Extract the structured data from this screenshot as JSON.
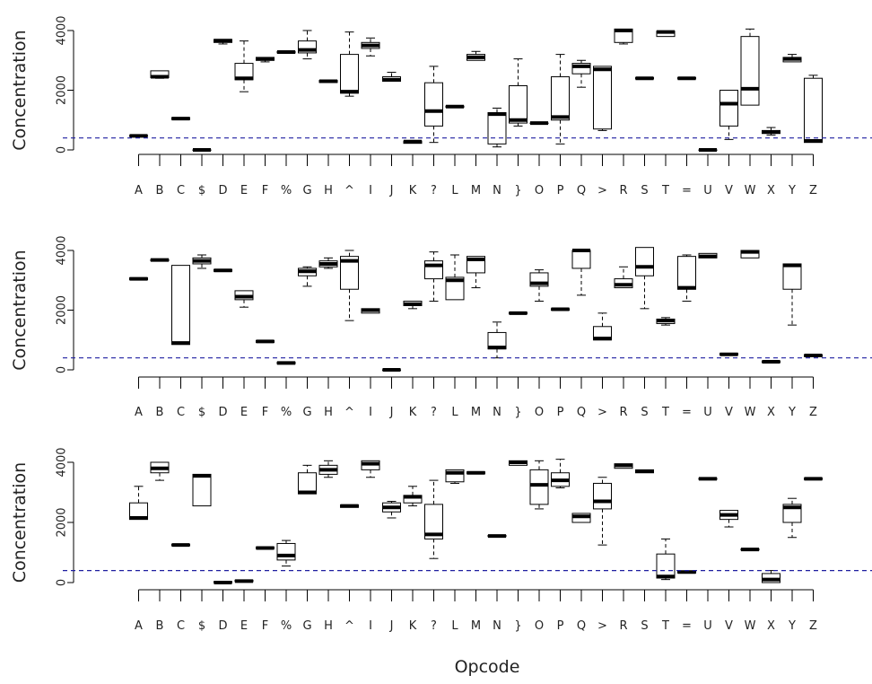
{
  "figure": {
    "xlabel": "Opcode",
    "ylabel": "Concentration",
    "threshold": 400,
    "threshold_color": "#1f1fa0"
  },
  "chart_data": [
    {
      "type": "boxplot",
      "categories": [
        "A",
        "B",
        "C",
        "$",
        "D",
        "E",
        "F",
        "%",
        "G",
        "H",
        "^",
        "I",
        "J",
        "K",
        "?",
        "L",
        "M",
        "N",
        "}",
        "O",
        "P",
        "Q",
        ">",
        "R",
        "S",
        "T",
        "=",
        "U",
        "V",
        "W",
        "X",
        "Y",
        "Z"
      ],
      "ylabel": "Concentration",
      "yticks": [
        0,
        2000,
        4000
      ],
      "ylim": [
        -250,
        4150
      ],
      "reference_line": 400,
      "boxes": [
        {
          "min": 460,
          "q1": 460,
          "median": 470,
          "q3": 480,
          "max": 480
        },
        {
          "min": 2400,
          "q1": 2420,
          "median": 2450,
          "q3": 2650,
          "max": 2650
        },
        {
          "min": 1020,
          "q1": 1020,
          "median": 1050,
          "q3": 1080,
          "max": 1080
        },
        {
          "min": 0,
          "q1": 0,
          "median": 0,
          "q3": 0,
          "max": 0
        },
        {
          "min": 3550,
          "q1": 3600,
          "median": 3660,
          "q3": 3700,
          "max": 3700
        },
        {
          "min": 1950,
          "q1": 2350,
          "median": 2400,
          "q3": 2900,
          "max": 3650
        },
        {
          "min": 2950,
          "q1": 3000,
          "median": 3050,
          "q3": 3100,
          "max": 3100
        },
        {
          "min": 3250,
          "q1": 3250,
          "median": 3280,
          "q3": 3300,
          "max": 3300
        },
        {
          "min": 3050,
          "q1": 3250,
          "median": 3350,
          "q3": 3650,
          "max": 4000
        },
        {
          "min": 2260,
          "q1": 2260,
          "median": 2300,
          "q3": 2330,
          "max": 2330
        },
        {
          "min": 1800,
          "q1": 1900,
          "median": 1950,
          "q3": 3200,
          "max": 3950
        },
        {
          "min": 3150,
          "q1": 3400,
          "median": 3500,
          "q3": 3600,
          "max": 3750
        },
        {
          "min": 2300,
          "q1": 2300,
          "median": 2350,
          "q3": 2450,
          "max": 2600
        },
        {
          "min": 220,
          "q1": 220,
          "median": 280,
          "q3": 300,
          "max": 300
        },
        {
          "min": 250,
          "q1": 800,
          "median": 1300,
          "q3": 2250,
          "max": 2800
        },
        {
          "min": 1430,
          "q1": 1430,
          "median": 1450,
          "q3": 1470,
          "max": 1470
        },
        {
          "min": 3000,
          "q1": 3000,
          "median": 3100,
          "q3": 3200,
          "max": 3300
        },
        {
          "min": 100,
          "q1": 200,
          "median": 1200,
          "q3": 1250,
          "max": 1400
        },
        {
          "min": 800,
          "q1": 900,
          "median": 1000,
          "q3": 2150,
          "max": 3050
        },
        {
          "min": 900,
          "q1": 900,
          "median": 900,
          "q3": 900,
          "max": 900
        },
        {
          "min": 200,
          "q1": 1000,
          "median": 1100,
          "q3": 2450,
          "max": 3200
        },
        {
          "min": 2100,
          "q1": 2550,
          "median": 2800,
          "q3": 2900,
          "max": 3000
        },
        {
          "min": 650,
          "q1": 700,
          "median": 2700,
          "q3": 2800,
          "max": 2800
        },
        {
          "min": 3550,
          "q1": 3600,
          "median": 4000,
          "q3": 4050,
          "max": 4050
        },
        {
          "min": 2380,
          "q1": 2380,
          "median": 2400,
          "q3": 2420,
          "max": 2420
        },
        {
          "min": 3800,
          "q1": 3800,
          "median": 3950,
          "q3": 3980,
          "max": 3980
        },
        {
          "min": 2380,
          "q1": 2380,
          "median": 2400,
          "q3": 2420,
          "max": 2420
        },
        {
          "min": 0,
          "q1": 0,
          "median": 0,
          "q3": 0,
          "max": 0
        },
        {
          "min": 350,
          "q1": 800,
          "median": 1550,
          "q3": 2000,
          "max": 2000
        },
        {
          "min": 1500,
          "q1": 1500,
          "median": 2050,
          "q3": 3800,
          "max": 4050
        },
        {
          "min": 500,
          "q1": 550,
          "median": 600,
          "q3": 650,
          "max": 750
        },
        {
          "min": 2950,
          "q1": 2950,
          "median": 3050,
          "q3": 3100,
          "max": 3200
        },
        {
          "min": 250,
          "q1": 250,
          "median": 300,
          "q3": 2400,
          "max": 2500
        }
      ]
    },
    {
      "type": "boxplot",
      "categories": [
        "A",
        "B",
        "C",
        "$",
        "D",
        "E",
        "F",
        "%",
        "G",
        "H",
        "^",
        "I",
        "J",
        "K",
        "?",
        "L",
        "M",
        "N",
        "}",
        "O",
        "P",
        "Q",
        ">",
        "R",
        "S",
        "T",
        "=",
        "U",
        "V",
        "W",
        "X",
        "Y",
        "Z"
      ],
      "ylabel": "Concentration",
      "yticks": [
        0,
        2000,
        4000
      ],
      "ylim": [
        -250,
        4150
      ],
      "reference_line": 400,
      "boxes": [
        {
          "min": 3020,
          "q1": 3020,
          "median": 3050,
          "q3": 3080,
          "max": 3080
        },
        {
          "min": 3650,
          "q1": 3650,
          "median": 3680,
          "q3": 3700,
          "max": 3700
        },
        {
          "min": 850,
          "q1": 850,
          "median": 900,
          "q3": 3500,
          "max": 3500
        },
        {
          "min": 3400,
          "q1": 3550,
          "median": 3650,
          "q3": 3750,
          "max": 3850
        },
        {
          "min": 3300,
          "q1": 3300,
          "median": 3330,
          "q3": 3360,
          "max": 3360
        },
        {
          "min": 2100,
          "q1": 2350,
          "median": 2450,
          "q3": 2650,
          "max": 2650
        },
        {
          "min": 920,
          "q1": 920,
          "median": 950,
          "q3": 980,
          "max": 980
        },
        {
          "min": 200,
          "q1": 200,
          "median": 230,
          "q3": 260,
          "max": 260
        },
        {
          "min": 2800,
          "q1": 3150,
          "median": 3300,
          "q3": 3400,
          "max": 3450
        },
        {
          "min": 3400,
          "q1": 3450,
          "median": 3550,
          "q3": 3650,
          "max": 3750
        },
        {
          "min": 1650,
          "q1": 2700,
          "median": 3650,
          "q3": 3800,
          "max": 4000
        },
        {
          "min": 1900,
          "q1": 1900,
          "median": 2000,
          "q3": 2050,
          "max": 2050
        },
        {
          "min": 0,
          "q1": 0,
          "median": 0,
          "q3": 0,
          "max": 0
        },
        {
          "min": 2050,
          "q1": 2150,
          "median": 2200,
          "q3": 2300,
          "max": 2300
        },
        {
          "min": 2300,
          "q1": 3050,
          "median": 3500,
          "q3": 3650,
          "max": 3950
        },
        {
          "min": 2350,
          "q1": 2350,
          "median": 3000,
          "q3": 3100,
          "max": 3850
        },
        {
          "min": 2750,
          "q1": 3250,
          "median": 3700,
          "q3": 3800,
          "max": 3800
        },
        {
          "min": 400,
          "q1": 700,
          "median": 750,
          "q3": 1250,
          "max": 1600
        },
        {
          "min": 1880,
          "q1": 1880,
          "median": 1900,
          "q3": 1920,
          "max": 1920
        },
        {
          "min": 2300,
          "q1": 2800,
          "median": 2900,
          "q3": 3250,
          "max": 3350
        },
        {
          "min": 2000,
          "q1": 2000,
          "median": 2030,
          "q3": 2050,
          "max": 2050
        },
        {
          "min": 2500,
          "q1": 3400,
          "median": 4000,
          "q3": 4000,
          "max": 4000
        },
        {
          "min": 1000,
          "q1": 1000,
          "median": 1050,
          "q3": 1450,
          "max": 1900
        },
        {
          "min": 2750,
          "q1": 2750,
          "median": 2850,
          "q3": 3050,
          "max": 3450
        },
        {
          "min": 2050,
          "q1": 3150,
          "median": 3450,
          "q3": 4100,
          "max": 4100
        },
        {
          "min": 1500,
          "q1": 1550,
          "median": 1650,
          "q3": 1700,
          "max": 1750
        },
        {
          "min": 2300,
          "q1": 2700,
          "median": 2750,
          "q3": 3800,
          "max": 3850
        },
        {
          "min": 3750,
          "q1": 3750,
          "median": 3800,
          "q3": 3900,
          "max": 3900
        },
        {
          "min": 500,
          "q1": 500,
          "median": 520,
          "q3": 550,
          "max": 550
        },
        {
          "min": 3750,
          "q1": 3750,
          "median": 3950,
          "q3": 4000,
          "max": 4000
        },
        {
          "min": 250,
          "q1": 250,
          "median": 270,
          "q3": 290,
          "max": 290
        },
        {
          "min": 1500,
          "q1": 2700,
          "median": 3500,
          "q3": 3550,
          "max": 3550
        },
        {
          "min": 450,
          "q1": 450,
          "median": 480,
          "q3": 500,
          "max": 500
        }
      ]
    },
    {
      "type": "boxplot",
      "categories": [
        "A",
        "B",
        "C",
        "$",
        "D",
        "E",
        "F",
        "%",
        "G",
        "H",
        "^",
        "I",
        "J",
        "K",
        "?",
        "L",
        "M",
        "N",
        "}",
        "O",
        "P",
        "Q",
        ">",
        "R",
        "S",
        "T",
        "=",
        "U",
        "V",
        "W",
        "X",
        "Y",
        "Z"
      ],
      "ylabel": "Concentration",
      "yticks": [
        0,
        2000,
        4000
      ],
      "ylim": [
        -250,
        4150
      ],
      "reference_line": 400,
      "boxes": [
        {
          "min": 2100,
          "q1": 2100,
          "median": 2150,
          "q3": 2650,
          "max": 3200
        },
        {
          "min": 3400,
          "q1": 3650,
          "median": 3800,
          "q3": 4000,
          "max": 4000
        },
        {
          "min": 1230,
          "q1": 1230,
          "median": 1250,
          "q3": 1270,
          "max": 1270
        },
        {
          "min": 2550,
          "q1": 2550,
          "median": 3550,
          "q3": 3600,
          "max": 3600
        },
        {
          "min": 0,
          "q1": 0,
          "median": 0,
          "q3": 30,
          "max": 30
        },
        {
          "min": 30,
          "q1": 30,
          "median": 50,
          "q3": 80,
          "max": 80
        },
        {
          "min": 1130,
          "q1": 1130,
          "median": 1150,
          "q3": 1180,
          "max": 1180
        },
        {
          "min": 550,
          "q1": 750,
          "median": 900,
          "q3": 1300,
          "max": 1400
        },
        {
          "min": 2950,
          "q1": 2950,
          "median": 3000,
          "q3": 3650,
          "max": 3900
        },
        {
          "min": 3500,
          "q1": 3600,
          "median": 3750,
          "q3": 3900,
          "max": 4050
        },
        {
          "min": 2500,
          "q1": 2500,
          "median": 2550,
          "q3": 2580,
          "max": 2580
        },
        {
          "min": 3500,
          "q1": 3750,
          "median": 3950,
          "q3": 4050,
          "max": 4050
        },
        {
          "min": 2150,
          "q1": 2350,
          "median": 2500,
          "q3": 2650,
          "max": 2700
        },
        {
          "min": 2550,
          "q1": 2650,
          "median": 2850,
          "q3": 2900,
          "max": 3200
        },
        {
          "min": 800,
          "q1": 1450,
          "median": 1600,
          "q3": 2600,
          "max": 3400
        },
        {
          "min": 3300,
          "q1": 3350,
          "median": 3650,
          "q3": 3750,
          "max": 3750
        },
        {
          "min": 3620,
          "q1": 3620,
          "median": 3650,
          "q3": 3680,
          "max": 3680
        },
        {
          "min": 1530,
          "q1": 1530,
          "median": 1550,
          "q3": 1570,
          "max": 1570
        },
        {
          "min": 3900,
          "q1": 3900,
          "median": 4000,
          "q3": 4050,
          "max": 4050
        },
        {
          "min": 2450,
          "q1": 2600,
          "median": 3250,
          "q3": 3750,
          "max": 4050
        },
        {
          "min": 3150,
          "q1": 3200,
          "median": 3400,
          "q3": 3650,
          "max": 4100
        },
        {
          "min": 2000,
          "q1": 2000,
          "median": 2200,
          "q3": 2300,
          "max": 2300
        },
        {
          "min": 1250,
          "q1": 2450,
          "median": 2700,
          "q3": 3300,
          "max": 3500
        },
        {
          "min": 3800,
          "q1": 3800,
          "median": 3900,
          "q3": 3950,
          "max": 3950
        },
        {
          "min": 3650,
          "q1": 3650,
          "median": 3700,
          "q3": 3750,
          "max": 3750
        },
        {
          "min": 100,
          "q1": 150,
          "median": 200,
          "q3": 950,
          "max": 1450
        },
        {
          "min": 320,
          "q1": 320,
          "median": 350,
          "q3": 380,
          "max": 380
        },
        {
          "min": 3430,
          "q1": 3430,
          "median": 3450,
          "q3": 3470,
          "max": 3470
        },
        {
          "min": 1850,
          "q1": 2100,
          "median": 2250,
          "q3": 2400,
          "max": 2400
        },
        {
          "min": 1080,
          "q1": 1080,
          "median": 1100,
          "q3": 1120,
          "max": 1120
        },
        {
          "min": 0,
          "q1": 0,
          "median": 100,
          "q3": 300,
          "max": 400
        },
        {
          "min": 1500,
          "q1": 2000,
          "median": 2500,
          "q3": 2600,
          "max": 2800
        },
        {
          "min": 3430,
          "q1": 3430,
          "median": 3450,
          "q3": 3470,
          "max": 3470
        }
      ]
    }
  ]
}
